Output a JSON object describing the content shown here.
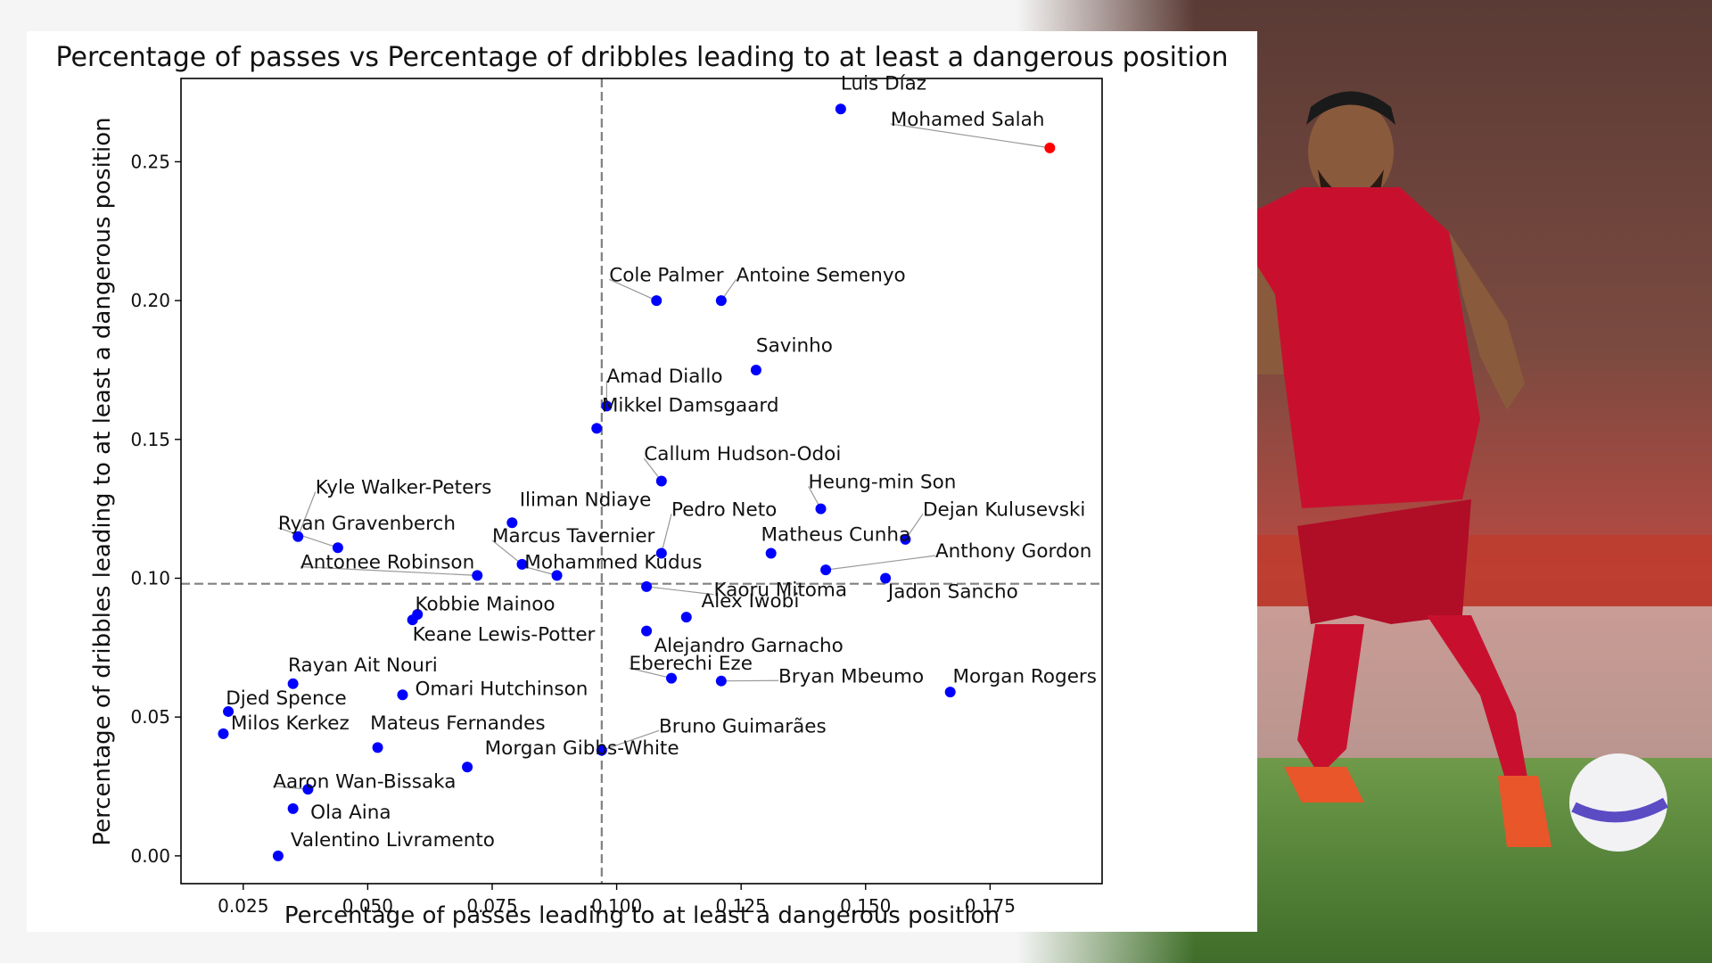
{
  "chart_data": {
    "type": "scatter",
    "title": "Percentage of passes vs Percentage of dribbles leading to at least a dangerous position",
    "xlabel": "Percentage of passes leading to at least a dangerous position",
    "ylabel": "Percentage of dribbles leading to at least a dangerous position",
    "xlim": [
      0.0125,
      0.1975
    ],
    "ylim": [
      -0.01,
      0.28
    ],
    "xticks": [
      0.025,
      0.05,
      0.075,
      0.1,
      0.125,
      0.15,
      0.175
    ],
    "xtick_labels": [
      "0.025",
      "0.050",
      "0.075",
      "0.100",
      "0.125",
      "0.150",
      "0.175"
    ],
    "yticks": [
      0.0,
      0.05,
      0.1,
      0.15,
      0.2,
      0.25
    ],
    "ytick_labels": [
      "0.00",
      "0.05",
      "0.10",
      "0.15",
      "0.20",
      "0.25"
    ],
    "reference_lines": {
      "x": 0.097,
      "y": 0.098
    },
    "grid": false,
    "colors": {
      "default_point": "#0000ff",
      "highlight_point": "#ff0000",
      "reference_line": "#808080"
    },
    "points": [
      {
        "name": "Luis Díaz",
        "x": 0.145,
        "y": 0.269,
        "lx": 0.145,
        "ly": 0.276,
        "anchor": "start"
      },
      {
        "name": "Mohamed Salah",
        "x": 0.187,
        "y": 0.255,
        "lx": 0.155,
        "ly": 0.263,
        "anchor": "start",
        "highlight": true
      },
      {
        "name": "Cole Palmer",
        "x": 0.108,
        "y": 0.2,
        "lx": 0.0985,
        "ly": 0.207,
        "anchor": "start"
      },
      {
        "name": "Antoine Semenyo",
        "x": 0.121,
        "y": 0.2,
        "lx": 0.124,
        "ly": 0.207,
        "anchor": "start"
      },
      {
        "name": "Savinho",
        "x": 0.128,
        "y": 0.175,
        "lx": 0.128,
        "ly": 0.1815,
        "anchor": "start"
      },
      {
        "name": "Amad Diallo",
        "x": 0.098,
        "y": 0.162,
        "lx": 0.098,
        "ly": 0.1705,
        "anchor": "start"
      },
      {
        "name": "Mikkel Damsgaard",
        "x": 0.096,
        "y": 0.154,
        "lx": 0.097,
        "ly": 0.16,
        "anchor": "start"
      },
      {
        "name": "Callum Hudson-Odoi",
        "x": 0.109,
        "y": 0.135,
        "lx": 0.1055,
        "ly": 0.1425,
        "anchor": "start"
      },
      {
        "name": "Kyle Walker-Peters",
        "x": 0.036,
        "y": 0.115,
        "lx": 0.0395,
        "ly": 0.1305,
        "anchor": "start"
      },
      {
        "name": "Iliman Ndiaye",
        "x": 0.079,
        "y": 0.12,
        "lx": 0.0805,
        "ly": 0.126,
        "anchor": "start"
      },
      {
        "name": "Heung-min Son",
        "x": 0.141,
        "y": 0.125,
        "lx": 0.1385,
        "ly": 0.1325,
        "anchor": "start"
      },
      {
        "name": "Ryan Gravenberch",
        "x": 0.044,
        "y": 0.111,
        "lx": 0.032,
        "ly": 0.1175,
        "anchor": "start"
      },
      {
        "name": "Pedro Neto",
        "x": 0.109,
        "y": 0.109,
        "lx": 0.111,
        "ly": 0.1225,
        "anchor": "start"
      },
      {
        "name": "Dejan Kulusevski",
        "x": 0.158,
        "y": 0.114,
        "lx": 0.1615,
        "ly": 0.1225,
        "anchor": "start"
      },
      {
        "name": "Marcus Tavernier",
        "x": 0.081,
        "y": 0.105,
        "lx": 0.075,
        "ly": 0.113,
        "anchor": "start"
      },
      {
        "name": "Matheus Cunha",
        "x": 0.131,
        "y": 0.109,
        "lx": 0.129,
        "ly": 0.1135,
        "anchor": "start"
      },
      {
        "name": "Antonee Robinson",
        "x": 0.072,
        "y": 0.101,
        "lx": 0.0365,
        "ly": 0.1035,
        "anchor": "start"
      },
      {
        "name": "Mohammed Kudus",
        "x": 0.088,
        "y": 0.101,
        "lx": 0.0815,
        "ly": 0.1035,
        "anchor": "start"
      },
      {
        "name": "Anthony Gordon",
        "x": 0.142,
        "y": 0.103,
        "lx": 0.164,
        "ly": 0.1075,
        "anchor": "start"
      },
      {
        "name": "Jadon Sancho",
        "x": 0.154,
        "y": 0.1,
        "lx": 0.1545,
        "ly": 0.093,
        "anchor": "start"
      },
      {
        "name": "Kaoru Mitoma",
        "x": 0.106,
        "y": 0.097,
        "lx": 0.1195,
        "ly": 0.0935,
        "anchor": "start"
      },
      {
        "name": "Kobbie Mainoo",
        "x": 0.06,
        "y": 0.087,
        "lx": 0.0595,
        "ly": 0.0885,
        "anchor": "start"
      },
      {
        "name": "Keane Lewis-Potter",
        "x": 0.059,
        "y": 0.085,
        "lx": 0.059,
        "ly": 0.0775,
        "anchor": "start"
      },
      {
        "name": "Alex Iwobi",
        "x": 0.114,
        "y": 0.086,
        "lx": 0.117,
        "ly": 0.0895,
        "anchor": "start"
      },
      {
        "name": "Alejandro Garnacho",
        "x": 0.106,
        "y": 0.081,
        "lx": 0.1075,
        "ly": 0.0735,
        "anchor": "start"
      },
      {
        "name": "Rayan Ait Nouri",
        "x": 0.035,
        "y": 0.062,
        "lx": 0.034,
        "ly": 0.0665,
        "anchor": "start"
      },
      {
        "name": "Eberechi Eze",
        "x": 0.111,
        "y": 0.064,
        "lx": 0.1025,
        "ly": 0.067,
        "anchor": "start"
      },
      {
        "name": "Bryan Mbeumo",
        "x": 0.121,
        "y": 0.063,
        "lx": 0.1325,
        "ly": 0.0625,
        "anchor": "start"
      },
      {
        "name": "Morgan Rogers",
        "x": 0.167,
        "y": 0.059,
        "lx": 0.1675,
        "ly": 0.0625,
        "anchor": "start"
      },
      {
        "name": "Omari Hutchinson",
        "x": 0.057,
        "y": 0.058,
        "lx": 0.0595,
        "ly": 0.058,
        "anchor": "start"
      },
      {
        "name": "Djed Spence",
        "x": 0.022,
        "y": 0.052,
        "lx": 0.0215,
        "ly": 0.0545,
        "anchor": "start"
      },
      {
        "name": "Milos Kerkez",
        "x": 0.021,
        "y": 0.044,
        "lx": 0.0225,
        "ly": 0.0455,
        "anchor": "start"
      },
      {
        "name": "Mateus Fernandes",
        "x": 0.052,
        "y": 0.039,
        "lx": 0.0505,
        "ly": 0.0455,
        "anchor": "start"
      },
      {
        "name": "Bruno Guimarães",
        "x": 0.097,
        "y": 0.038,
        "lx": 0.1085,
        "ly": 0.0445,
        "anchor": "start"
      },
      {
        "name": "Morgan Gibbs-White",
        "x": 0.07,
        "y": 0.032,
        "lx": 0.0735,
        "ly": 0.0365,
        "anchor": "start"
      },
      {
        "name": "Aaron Wan-Bissaka",
        "x": 0.038,
        "y": 0.024,
        "lx": 0.031,
        "ly": 0.0245,
        "anchor": "start"
      },
      {
        "name": "Ola Aina",
        "x": 0.035,
        "y": 0.017,
        "lx": 0.0385,
        "ly": 0.0135,
        "anchor": "start"
      },
      {
        "name": "Valentino Livramento",
        "x": 0.032,
        "y": 0.0,
        "lx": 0.0345,
        "ly": 0.0035,
        "anchor": "start"
      }
    ]
  }
}
